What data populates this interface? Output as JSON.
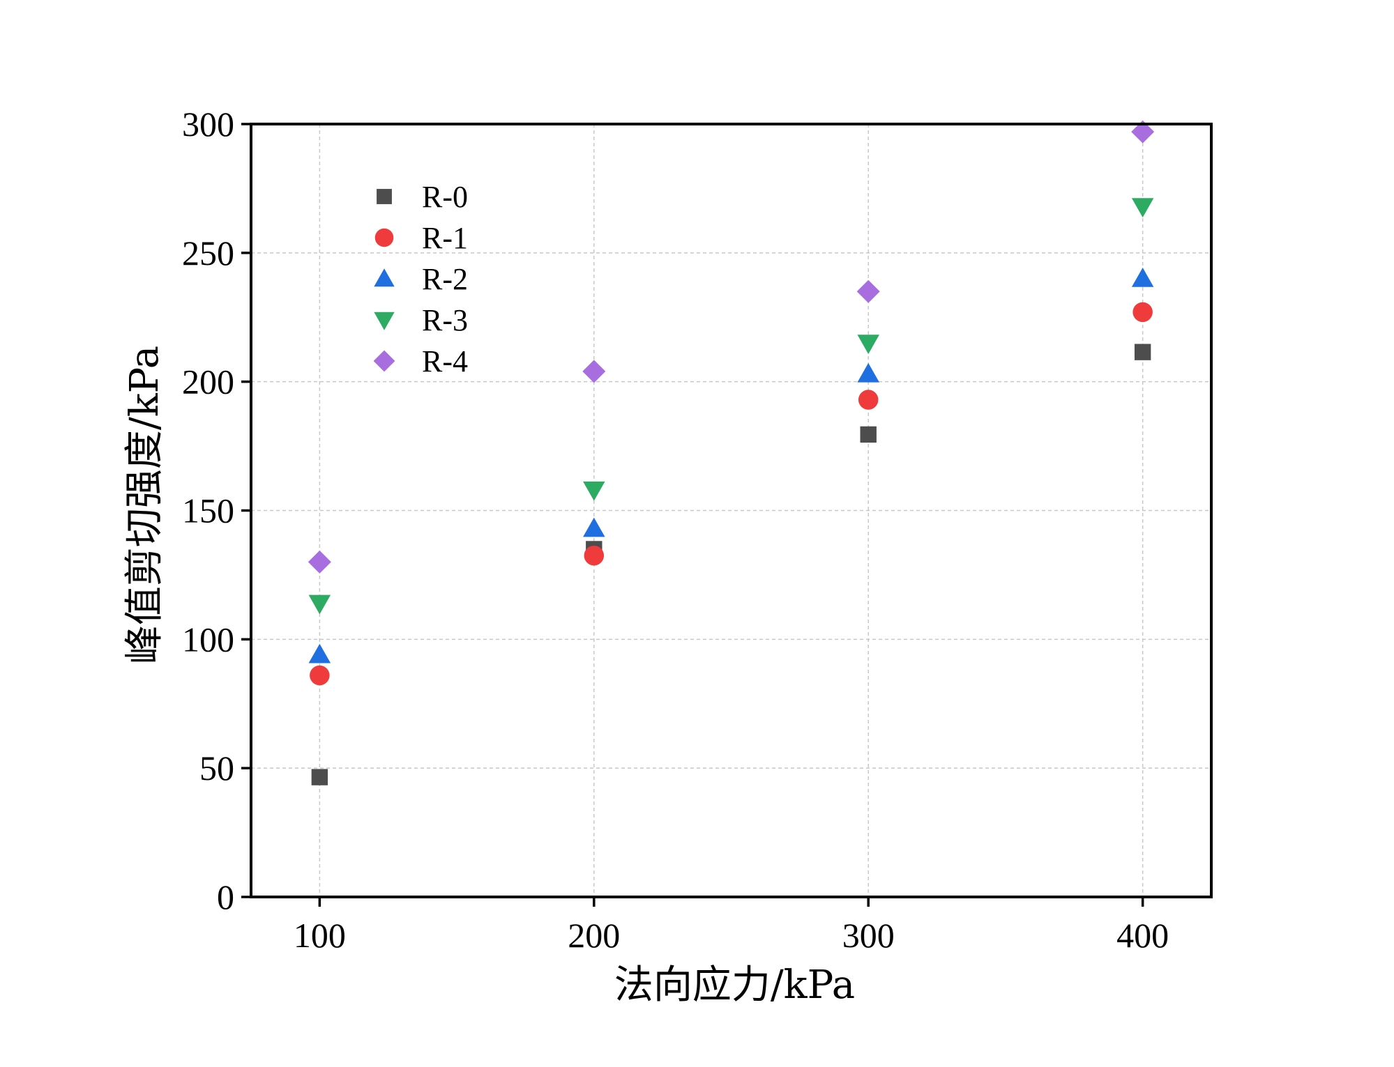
{
  "chart_data": {
    "type": "scatter",
    "title": "",
    "xlabel": "法向应力/kPa",
    "ylabel": "峰值剪切强度/kPa",
    "x": [
      100,
      200,
      300,
      400
    ],
    "xlim": [
      75,
      425
    ],
    "ylim": [
      0,
      300
    ],
    "xticks": [
      100,
      200,
      300,
      400
    ],
    "yticks": [
      0,
      50,
      100,
      150,
      200,
      250,
      300
    ],
    "grid": true,
    "legend_position": "top-left",
    "series": [
      {
        "name": "R-0",
        "marker": "square",
        "color": "#4d4d4d",
        "values": [
          46.5,
          135,
          179.5,
          211.5
        ]
      },
      {
        "name": "R-1",
        "marker": "circle",
        "color": "#ef3b3b",
        "values": [
          86,
          132.5,
          193,
          227
        ]
      },
      {
        "name": "R-2",
        "marker": "triangle-up",
        "color": "#1f6fe0",
        "values": [
          94,
          143,
          203,
          240
        ]
      },
      {
        "name": "R-3",
        "marker": "triangle-down",
        "color": "#2eab63",
        "values": [
          114,
          158,
          215,
          268
        ]
      },
      {
        "name": "R-4",
        "marker": "diamond",
        "color": "#a86ee0",
        "values": [
          130,
          204,
          235,
          297
        ]
      }
    ]
  }
}
